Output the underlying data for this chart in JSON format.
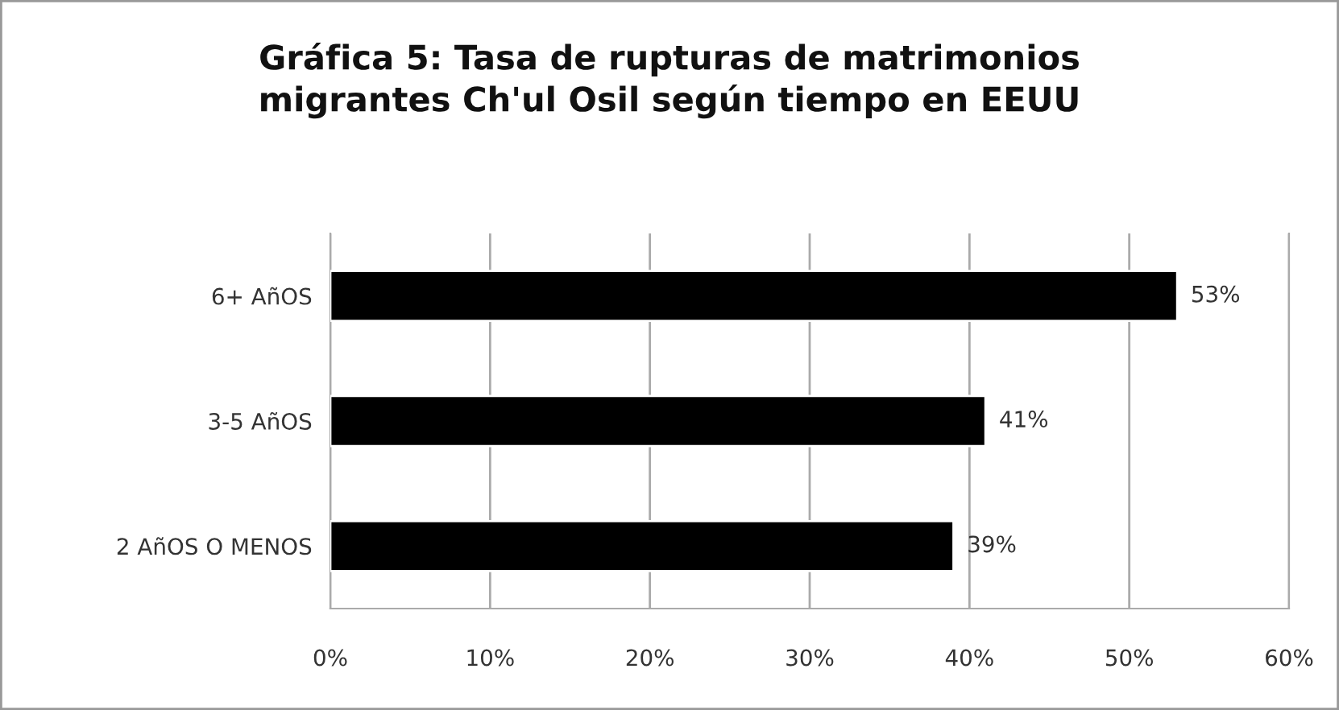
{
  "chart_data": {
    "type": "bar",
    "orientation": "horizontal",
    "title": "Gráfica 5: Tasa de rupturas de matrimonios\nmigrantes Ch'ul Osil según tiempo en EEUU",
    "categories": [
      "6+ AñOS",
      "3-5 AñOS",
      "2 AñOS O MENOS"
    ],
    "values": [
      53,
      41,
      39
    ],
    "value_labels": [
      "53%",
      "41%",
      "39%"
    ],
    "color": "#000000",
    "xlim": [
      0,
      60
    ],
    "xticks": [
      {
        "value": 0,
        "label": "0%"
      },
      {
        "value": 10,
        "label": "10%"
      },
      {
        "value": 20,
        "label": "20%"
      },
      {
        "value": 30,
        "label": "30%"
      },
      {
        "value": 40,
        "label": "40%"
      },
      {
        "value": 50,
        "label": "50%"
      },
      {
        "value": 60,
        "label": "60%"
      }
    ],
    "grid": "x",
    "legend": false
  }
}
